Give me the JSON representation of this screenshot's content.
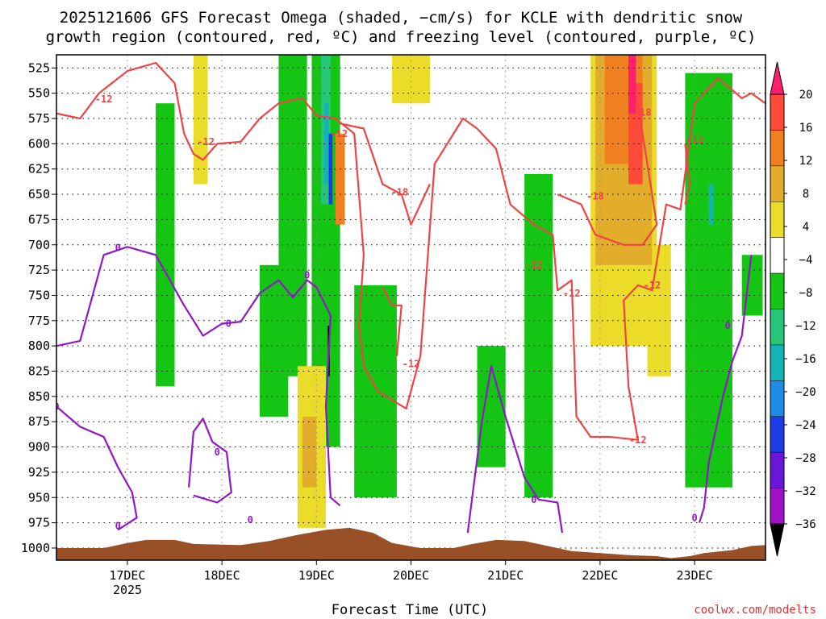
{
  "chart_data": {
    "type": "heatmap",
    "title_lines": [
      "2025121606 GFS Forecast Omega (shaded, −cm/s) for KCLE with dendritic snow",
      "growth region (contoured, red, ºC) and freezing level (contoured, purple, ºC)"
    ],
    "xlabel": "Forecast Time (UTC)",
    "credit": "coolwx.com/modelts",
    "x_ticks": [
      "17DEC",
      "18DEC",
      "19DEC",
      "20DEC",
      "21DEC",
      "22DEC",
      "23DEC"
    ],
    "x_year_label": "2025",
    "x_range_days": [
      16.25,
      23.75
    ],
    "y_ticks": [
      525,
      550,
      575,
      600,
      625,
      650,
      675,
      700,
      725,
      750,
      775,
      800,
      825,
      850,
      875,
      900,
      925,
      950,
      975,
      1000
    ],
    "y_range_hpa": [
      512,
      1012
    ],
    "grid": true,
    "colorbar": {
      "labels": [
        "20",
        "16",
        "12",
        "8",
        "4",
        "−4",
        "−8",
        "−12",
        "−16",
        "−20",
        "−24",
        "−28",
        "−32",
        "−36"
      ],
      "colors": [
        "#ff1f6e",
        "#ff4a3a",
        "#ef7f1f",
        "#e3ad2c",
        "#ecdc2a",
        "#ffffff",
        "#14c514",
        "#28c47a",
        "#14b4b4",
        "#1e8ce6",
        "#1e3ce6",
        "#6a16d6",
        "#a010c6",
        "#a8a8a8",
        "#000000"
      ]
    },
    "shaded_regions": [
      {
        "level": -4,
        "color": "#14c514",
        "day_start": 17.3,
        "day_end": 17.5,
        "p_top": 560,
        "p_bottom": 840
      },
      {
        "level": -4,
        "color": "#14c514",
        "day_start": 18.4,
        "day_end": 18.7,
        "p_top": 720,
        "p_bottom": 870
      },
      {
        "level": -4,
        "color": "#14c514",
        "day_start": 18.6,
        "day_end": 18.9,
        "p_top": 510,
        "p_bottom": 830
      },
      {
        "level": -4,
        "color": "#14c514",
        "day_start": 18.95,
        "day_end": 19.25,
        "p_top": 510,
        "p_bottom": 900
      },
      {
        "level": -4,
        "color": "#14c514",
        "day_start": 19.4,
        "day_end": 19.85,
        "p_top": 740,
        "p_bottom": 950
      },
      {
        "level": -4,
        "color": "#14c514",
        "day_start": 20.7,
        "day_end": 21.0,
        "p_top": 800,
        "p_bottom": 920
      },
      {
        "level": -4,
        "color": "#14c514",
        "day_start": 21.2,
        "day_end": 21.5,
        "p_top": 630,
        "p_bottom": 950
      },
      {
        "level": -4,
        "color": "#14c514",
        "day_start": 22.9,
        "day_end": 23.4,
        "p_top": 530,
        "p_bottom": 940
      },
      {
        "level": -4,
        "color": "#14c514",
        "day_start": 23.5,
        "day_end": 23.72,
        "p_top": 710,
        "p_bottom": 770
      },
      {
        "level": -8,
        "color": "#28c47a",
        "day_start": 19.05,
        "day_end": 19.15,
        "p_top": 510,
        "p_bottom": 660
      },
      {
        "level": -12,
        "color": "#14b4b4",
        "day_start": 19.08,
        "day_end": 19.13,
        "p_top": 560,
        "p_bottom": 640
      },
      {
        "level": -12,
        "color": "#14b4b4",
        "day_start": 23.15,
        "day_end": 23.2,
        "p_top": 640,
        "p_bottom": 680
      },
      {
        "level": -24,
        "color": "#1e3ce6",
        "day_start": 19.13,
        "day_end": 19.17,
        "p_top": 590,
        "p_bottom": 660
      },
      {
        "level": -36,
        "color": "#000000",
        "day_start": 19.12,
        "day_end": 19.14,
        "p_top": 780,
        "p_bottom": 830
      },
      {
        "level": 4,
        "color": "#ecdc2a",
        "day_start": 17.7,
        "day_end": 17.85,
        "p_top": 510,
        "p_bottom": 640
      },
      {
        "level": 4,
        "color": "#ecdc2a",
        "day_start": 18.8,
        "day_end": 19.1,
        "p_top": 820,
        "p_bottom": 980
      },
      {
        "level": 4,
        "color": "#ecdc2a",
        "day_start": 19.8,
        "day_end": 20.2,
        "p_top": 510,
        "p_bottom": 560
      },
      {
        "level": 4,
        "color": "#ecdc2a",
        "day_start": 21.9,
        "day_end": 22.6,
        "p_top": 510,
        "p_bottom": 800
      },
      {
        "level": 4,
        "color": "#ecdc2a",
        "day_start": 22.5,
        "day_end": 22.75,
        "p_top": 700,
        "p_bottom": 830
      },
      {
        "level": 8,
        "color": "#e3ad2c",
        "day_start": 18.85,
        "day_end": 19.0,
        "p_top": 870,
        "p_bottom": 940
      },
      {
        "level": 8,
        "color": "#e3ad2c",
        "day_start": 21.95,
        "day_end": 22.55,
        "p_top": 510,
        "p_bottom": 720
      },
      {
        "level": 12,
        "color": "#ef7f1f",
        "day_start": 19.2,
        "day_end": 19.3,
        "p_top": 590,
        "p_bottom": 680
      },
      {
        "level": 12,
        "color": "#ef7f1f",
        "day_start": 22.05,
        "day_end": 22.45,
        "p_top": 510,
        "p_bottom": 620
      },
      {
        "level": 16,
        "color": "#ff4a3a",
        "day_start": 22.3,
        "day_end": 22.45,
        "p_top": 540,
        "p_bottom": 640
      },
      {
        "level": 20,
        "color": "#ff1f6e",
        "day_start": 22.3,
        "day_end": 22.38,
        "p_top": 510,
        "p_bottom": 570
      }
    ],
    "dgz_contours": [
      {
        "level": -12,
        "label": "-12",
        "label_at": [
          16.75,
          556
        ],
        "points": [
          [
            16.25,
            570
          ],
          [
            16.5,
            575
          ],
          [
            16.7,
            550
          ],
          [
            17.0,
            528
          ],
          [
            17.3,
            520
          ],
          [
            17.5,
            540
          ],
          [
            17.6,
            590
          ],
          [
            17.7,
            610
          ],
          [
            17.8,
            616
          ],
          [
            17.95,
            600
          ],
          [
            18.2,
            598
          ],
          [
            18.4,
            575
          ],
          [
            18.6,
            560
          ],
          [
            18.85,
            555
          ],
          [
            19.0,
            572
          ],
          [
            19.2,
            575
          ],
          [
            19.4,
            590
          ],
          [
            19.5,
            710
          ],
          [
            19.45,
            780
          ],
          [
            19.5,
            820
          ],
          [
            19.65,
            845
          ],
          [
            19.95,
            862
          ],
          [
            20.1,
            810
          ],
          [
            20.25,
            620
          ],
          [
            20.55,
            575
          ],
          [
            20.7,
            585
          ],
          [
            20.9,
            605
          ],
          [
            21.05,
            660
          ],
          [
            21.3,
            680
          ],
          [
            21.5,
            690
          ],
          [
            21.55,
            745
          ],
          [
            21.7,
            735
          ],
          [
            21.75,
            870
          ],
          [
            21.9,
            890
          ],
          [
            22.1,
            890
          ],
          [
            22.4,
            893
          ],
          [
            22.3,
            840
          ],
          [
            22.25,
            755
          ],
          [
            22.4,
            740
          ],
          [
            22.55,
            745
          ],
          [
            22.7,
            660
          ],
          [
            22.85,
            665
          ],
          [
            23.0,
            560
          ],
          [
            23.25,
            535
          ],
          [
            23.5,
            555
          ],
          [
            23.6,
            550
          ],
          [
            23.75,
            560
          ]
        ]
      },
      {
        "level": -12,
        "label": "-12",
        "label_at": [
          17.83,
          598
        ],
        "points": [
          [
            19.7,
            742
          ],
          [
            19.8,
            760
          ],
          [
            19.9,
            760
          ],
          [
            19.85,
            810
          ]
        ]
      },
      {
        "level": -12,
        "label": "-12",
        "label_at": [
          23.0,
          596
        ],
        "points": [
          [
            22.9,
            600
          ],
          [
            22.95,
            640
          ],
          [
            22.9,
            660
          ]
        ]
      },
      {
        "level": -12,
        "label": "-12",
        "label_at": [
          21.3,
          720
        ],
        "points": []
      },
      {
        "level": -12,
        "label": "-12",
        "label_at": [
          21.7,
          748
        ],
        "points": []
      },
      {
        "level": -12,
        "label": "-12",
        "label_at": [
          22.55,
          740
        ],
        "points": []
      },
      {
        "level": -12,
        "label": "-12",
        "label_at": [
          20.0,
          818
        ],
        "points": []
      },
      {
        "level": -12,
        "label": "-12",
        "label_at": [
          22.4,
          893
        ],
        "points": []
      },
      {
        "level": -12,
        "label": "-12",
        "label_at": [
          19.24,
          590
        ],
        "points": []
      },
      {
        "level": -18,
        "label": "-18",
        "label_at": [
          19.88,
          648
        ],
        "points": [
          [
            19.25,
            580
          ],
          [
            19.5,
            585
          ],
          [
            19.7,
            640
          ],
          [
            19.9,
            650
          ],
          [
            20.0,
            680
          ],
          [
            20.2,
            640
          ]
        ]
      },
      {
        "level": -18,
        "label": "-18",
        "label_at": [
          21.95,
          652
        ],
        "points": [
          [
            21.55,
            650
          ],
          [
            21.8,
            660
          ],
          [
            21.95,
            690
          ],
          [
            22.25,
            700
          ],
          [
            22.45,
            700
          ],
          [
            22.6,
            680
          ],
          [
            22.5,
            620
          ],
          [
            22.4,
            560
          ]
        ]
      },
      {
        "level": -18,
        "label": "-18",
        "label_at": [
          22.45,
          569
        ],
        "points": []
      }
    ],
    "freezing_contours": [
      {
        "level": 0,
        "label": "0",
        "label_at": [
          16.9,
          703
        ],
        "points": [
          [
            16.25,
            800
          ],
          [
            16.5,
            795
          ],
          [
            16.75,
            710
          ],
          [
            17.0,
            702
          ],
          [
            17.3,
            710
          ],
          [
            17.6,
            760
          ],
          [
            17.8,
            790
          ],
          [
            18.0,
            778
          ],
          [
            18.2,
            776
          ],
          [
            18.4,
            748
          ],
          [
            18.6,
            735
          ],
          [
            18.75,
            752
          ],
          [
            18.9,
            735
          ],
          [
            19.0,
            742
          ],
          [
            19.15,
            770
          ],
          [
            19.1,
            860
          ],
          [
            19.15,
            950
          ],
          [
            19.25,
            958
          ]
        ]
      },
      {
        "level": 0,
        "label": "0",
        "label_at": [
          18.07,
          778
        ],
        "points": []
      },
      {
        "level": 0,
        "label": "0",
        "label_at": [
          18.9,
          730
        ],
        "points": []
      },
      {
        "level": 0,
        "label": "0",
        "label_at": [
          16.25,
          860
        ],
        "points": [
          [
            16.25,
            860
          ],
          [
            16.5,
            880
          ],
          [
            16.75,
            890
          ],
          [
            16.9,
            920
          ],
          [
            17.05,
            945
          ],
          [
            17.1,
            970
          ],
          [
            16.9,
            982
          ]
        ]
      },
      {
        "level": 0,
        "label": "0",
        "label_at": [
          16.9,
          978
        ],
        "points": []
      },
      {
        "level": 0,
        "label": "0",
        "label_at": [
          17.95,
          905
        ],
        "points": [
          [
            17.65,
            940
          ],
          [
            17.7,
            885
          ],
          [
            17.8,
            872
          ],
          [
            17.9,
            895
          ],
          [
            18.05,
            905
          ],
          [
            18.1,
            945
          ],
          [
            17.95,
            955
          ],
          [
            17.7,
            948
          ]
        ]
      },
      {
        "level": 0,
        "label": "0",
        "label_at": [
          18.3,
          972
        ],
        "points": []
      },
      {
        "level": 0,
        "label": "0",
        "label_at": [
          21.3,
          952
        ],
        "points": [
          [
            20.6,
            985
          ],
          [
            20.75,
            875
          ],
          [
            20.85,
            820
          ],
          [
            21.0,
            870
          ],
          [
            21.2,
            930
          ],
          [
            21.35,
            952
          ],
          [
            21.55,
            955
          ],
          [
            21.6,
            985
          ]
        ]
      },
      {
        "level": 0,
        "label": "0",
        "label_at": [
          23.35,
          780
        ],
        "points": [
          [
            23.6,
            710
          ],
          [
            23.5,
            790
          ],
          [
            23.4,
            815
          ],
          [
            23.3,
            850
          ],
          [
            23.15,
            915
          ],
          [
            23.1,
            960
          ],
          [
            23.05,
            975
          ]
        ]
      },
      {
        "level": 0,
        "label": "0",
        "label_at": [
          23.0,
          970
        ],
        "points": []
      }
    ],
    "terrain": {
      "color": "#9a5026"
    }
  }
}
